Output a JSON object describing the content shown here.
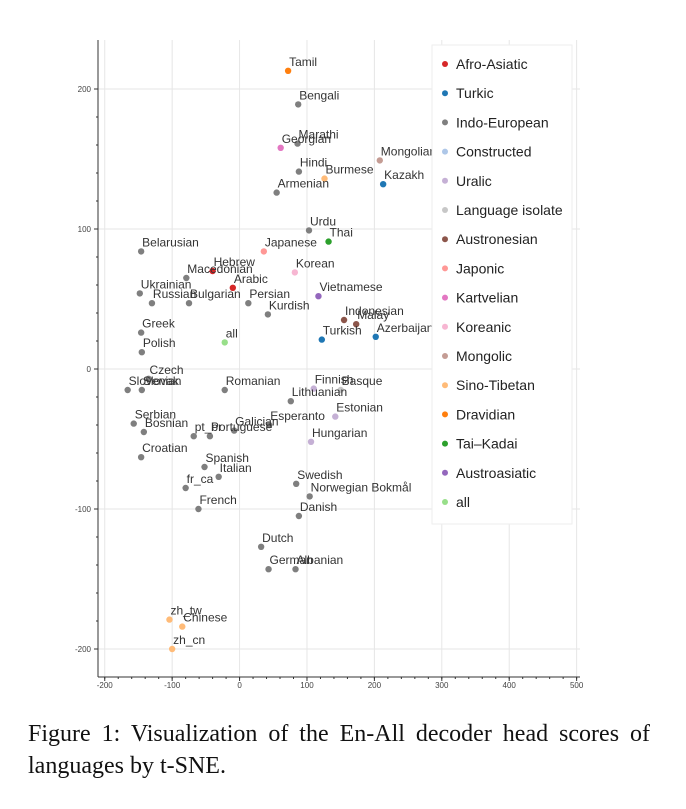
{
  "caption": "Figure 1:  Visualization of the En-All decoder head scores of languages by t-SNE.",
  "chart_data": {
    "type": "scatter",
    "title": "",
    "xlabel": "",
    "ylabel": "",
    "xlim": [
      -210,
      505
    ],
    "ylim": [
      -220,
      235
    ],
    "x_ticks": [
      -200,
      -100,
      0,
      100,
      200,
      300,
      400,
      500
    ],
    "y_ticks": [
      -200,
      -100,
      0,
      100,
      200
    ],
    "grid": true,
    "legend_position": "top-right",
    "series": [
      {
        "name": "Afro-Asiatic",
        "color": "#d62728",
        "points": [
          {
            "label": "Hebrew",
            "x": -40,
            "y": 70
          },
          {
            "label": "Arabic",
            "x": -10,
            "y": 58
          }
        ]
      },
      {
        "name": "Turkic",
        "color": "#1f77b4",
        "points": [
          {
            "label": "Kazakh",
            "x": 213,
            "y": 132
          },
          {
            "label": "Turkish",
            "x": 122,
            "y": 21
          },
          {
            "label": "Azerbaijani",
            "x": 202,
            "y": 23
          }
        ]
      },
      {
        "name": "Indo-European",
        "color": "#7f7f7f",
        "points": [
          {
            "label": "Bengali",
            "x": 87,
            "y": 189
          },
          {
            "label": "Marathi",
            "x": 86,
            "y": 161
          },
          {
            "label": "Hindi",
            "x": 88,
            "y": 141
          },
          {
            "label": "Armenian",
            "x": 55,
            "y": 126
          },
          {
            "label": "Urdu",
            "x": 103,
            "y": 99
          },
          {
            "label": "Belarusian",
            "x": -146,
            "y": 84
          },
          {
            "label": "Macedonian",
            "x": -79,
            "y": 65
          },
          {
            "label": "Ukrainian",
            "x": -148,
            "y": 54
          },
          {
            "label": "Russian",
            "x": -130,
            "y": 47
          },
          {
            "label": "Bulgarian",
            "x": -75,
            "y": 47
          },
          {
            "label": "Persian",
            "x": 13,
            "y": 47
          },
          {
            "label": "Kurdish",
            "x": 42,
            "y": 39
          },
          {
            "label": "Greek",
            "x": -146,
            "y": 26
          },
          {
            "label": "Polish",
            "x": -145,
            "y": 12
          },
          {
            "label": "Slovenian",
            "x": -166,
            "y": -15
          },
          {
            "label": "Czech",
            "x": -135,
            "y": -7
          },
          {
            "label": "Slovak",
            "x": -145,
            "y": -15
          },
          {
            "label": "Romanian",
            "x": -22,
            "y": -15
          },
          {
            "label": "Lithuanian",
            "x": 76,
            "y": -23
          },
          {
            "label": "Serbian",
            "x": -157,
            "y": -39
          },
          {
            "label": "Bosnian",
            "x": -142,
            "y": -45
          },
          {
            "label": "pt_br",
            "x": -68,
            "y": -48
          },
          {
            "label": "Portuguese",
            "x": -44,
            "y": -48
          },
          {
            "label": "Galician",
            "x": -8,
            "y": -44
          },
          {
            "label": "Esperanto",
            "x": 44,
            "y": -40
          },
          {
            "label": "Croatian",
            "x": -146,
            "y": -63
          },
          {
            "label": "Spanish",
            "x": -52,
            "y": -70
          },
          {
            "label": "Italian",
            "x": -31,
            "y": -77
          },
          {
            "label": "fr_ca",
            "x": -80,
            "y": -85
          },
          {
            "label": "French",
            "x": -61,
            "y": -100
          },
          {
            "label": "Swedish",
            "x": 84,
            "y": -82
          },
          {
            "label": "Norwegian Bokmål",
            "x": 104,
            "y": -91
          },
          {
            "label": "Danish",
            "x": 88,
            "y": -105
          },
          {
            "label": "Dutch",
            "x": 32,
            "y": -127
          },
          {
            "label": "German",
            "x": 43,
            "y": -143
          },
          {
            "label": "Albanian",
            "x": 83,
            "y": -143
          }
        ]
      },
      {
        "name": "Constructed",
        "color": "#aec7e8",
        "points": []
      },
      {
        "name": "Uralic",
        "color": "#c5b0d5",
        "points": [
          {
            "label": "Finnish",
            "x": 110,
            "y": -14
          },
          {
            "label": "Estonian",
            "x": 142,
            "y": -34
          },
          {
            "label": "Hungarian",
            "x": 106,
            "y": -52
          }
        ]
      },
      {
        "name": "Language isolate",
        "color": "#c7c7c7",
        "points": [
          {
            "label": "Basque",
            "x": 150,
            "y": -15
          }
        ]
      },
      {
        "name": "Austronesian",
        "color": "#8c564b",
        "points": [
          {
            "label": "Indonesian",
            "x": 155,
            "y": 35
          },
          {
            "label": "Malay",
            "x": 173,
            "y": 32
          }
        ]
      },
      {
        "name": "Japonic",
        "color": "#ff9896",
        "points": [
          {
            "label": "Japanese",
            "x": 36,
            "y": 84
          }
        ]
      },
      {
        "name": "Kartvelian",
        "color": "#e377c2",
        "points": [
          {
            "label": "Georgian",
            "x": 61,
            "y": 158
          }
        ]
      },
      {
        "name": "Koreanic",
        "color": "#f7b6d2",
        "points": [
          {
            "label": "Korean",
            "x": 82,
            "y": 69
          }
        ]
      },
      {
        "name": "Mongolic",
        "color": "#c49c94",
        "points": [
          {
            "label": "Mongolian",
            "x": 208,
            "y": 149
          }
        ]
      },
      {
        "name": "Sino-Tibetan",
        "color": "#ffbb78",
        "points": [
          {
            "label": "Burmese",
            "x": 126,
            "y": 136
          },
          {
            "label": "zh_tw",
            "x": -104,
            "y": -179
          },
          {
            "label": "Chinese",
            "x": -85,
            "y": -184
          },
          {
            "label": "zh_cn",
            "x": -100,
            "y": -200
          }
        ]
      },
      {
        "name": "Dravidian",
        "color": "#ff7f0e",
        "points": [
          {
            "label": "Tamil",
            "x": 72,
            "y": 213
          }
        ]
      },
      {
        "name": "Tai–Kadai",
        "color": "#2ca02c",
        "points": [
          {
            "label": "Thai",
            "x": 132,
            "y": 91
          }
        ]
      },
      {
        "name": "Austroasiatic",
        "color": "#9467bd",
        "points": [
          {
            "label": "Vietnamese",
            "x": 117,
            "y": 52
          }
        ]
      },
      {
        "name": "all",
        "color": "#98df8a",
        "points": [
          {
            "label": "all",
            "x": -22,
            "y": 19
          }
        ]
      }
    ]
  }
}
